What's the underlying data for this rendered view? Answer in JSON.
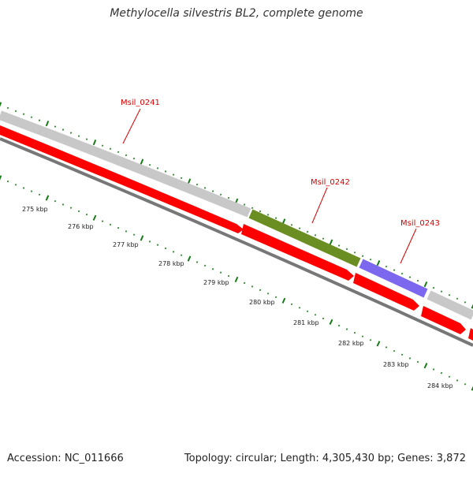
{
  "title": "Methylocella silvestris BL2, complete genome",
  "footer": {
    "accession": "Accession: NC_011666",
    "summary": "Topology: circular; Length: 4,305,430 bp; Genes: 3,872"
  },
  "colors": {
    "cds": "#ff0000",
    "forward_gene": "#c8c8c8",
    "olive_gene": "#6b8e23",
    "purple_gene": "#7b68ee",
    "backbone": "#777777",
    "ticks": "#1a7a1a",
    "gene_label": "#d40000"
  },
  "genes": [
    {
      "name": "Msil_0241"
    },
    {
      "name": "Msil_0242"
    },
    {
      "name": "Msil_0243"
    }
  ],
  "scale_labels": [
    "275 kbp",
    "276 kbp",
    "277 kbp",
    "278 kbp",
    "279 kbp",
    "280 kbp",
    "281 kbp",
    "282 kbp",
    "283 kbp",
    "284 kbp"
  ]
}
